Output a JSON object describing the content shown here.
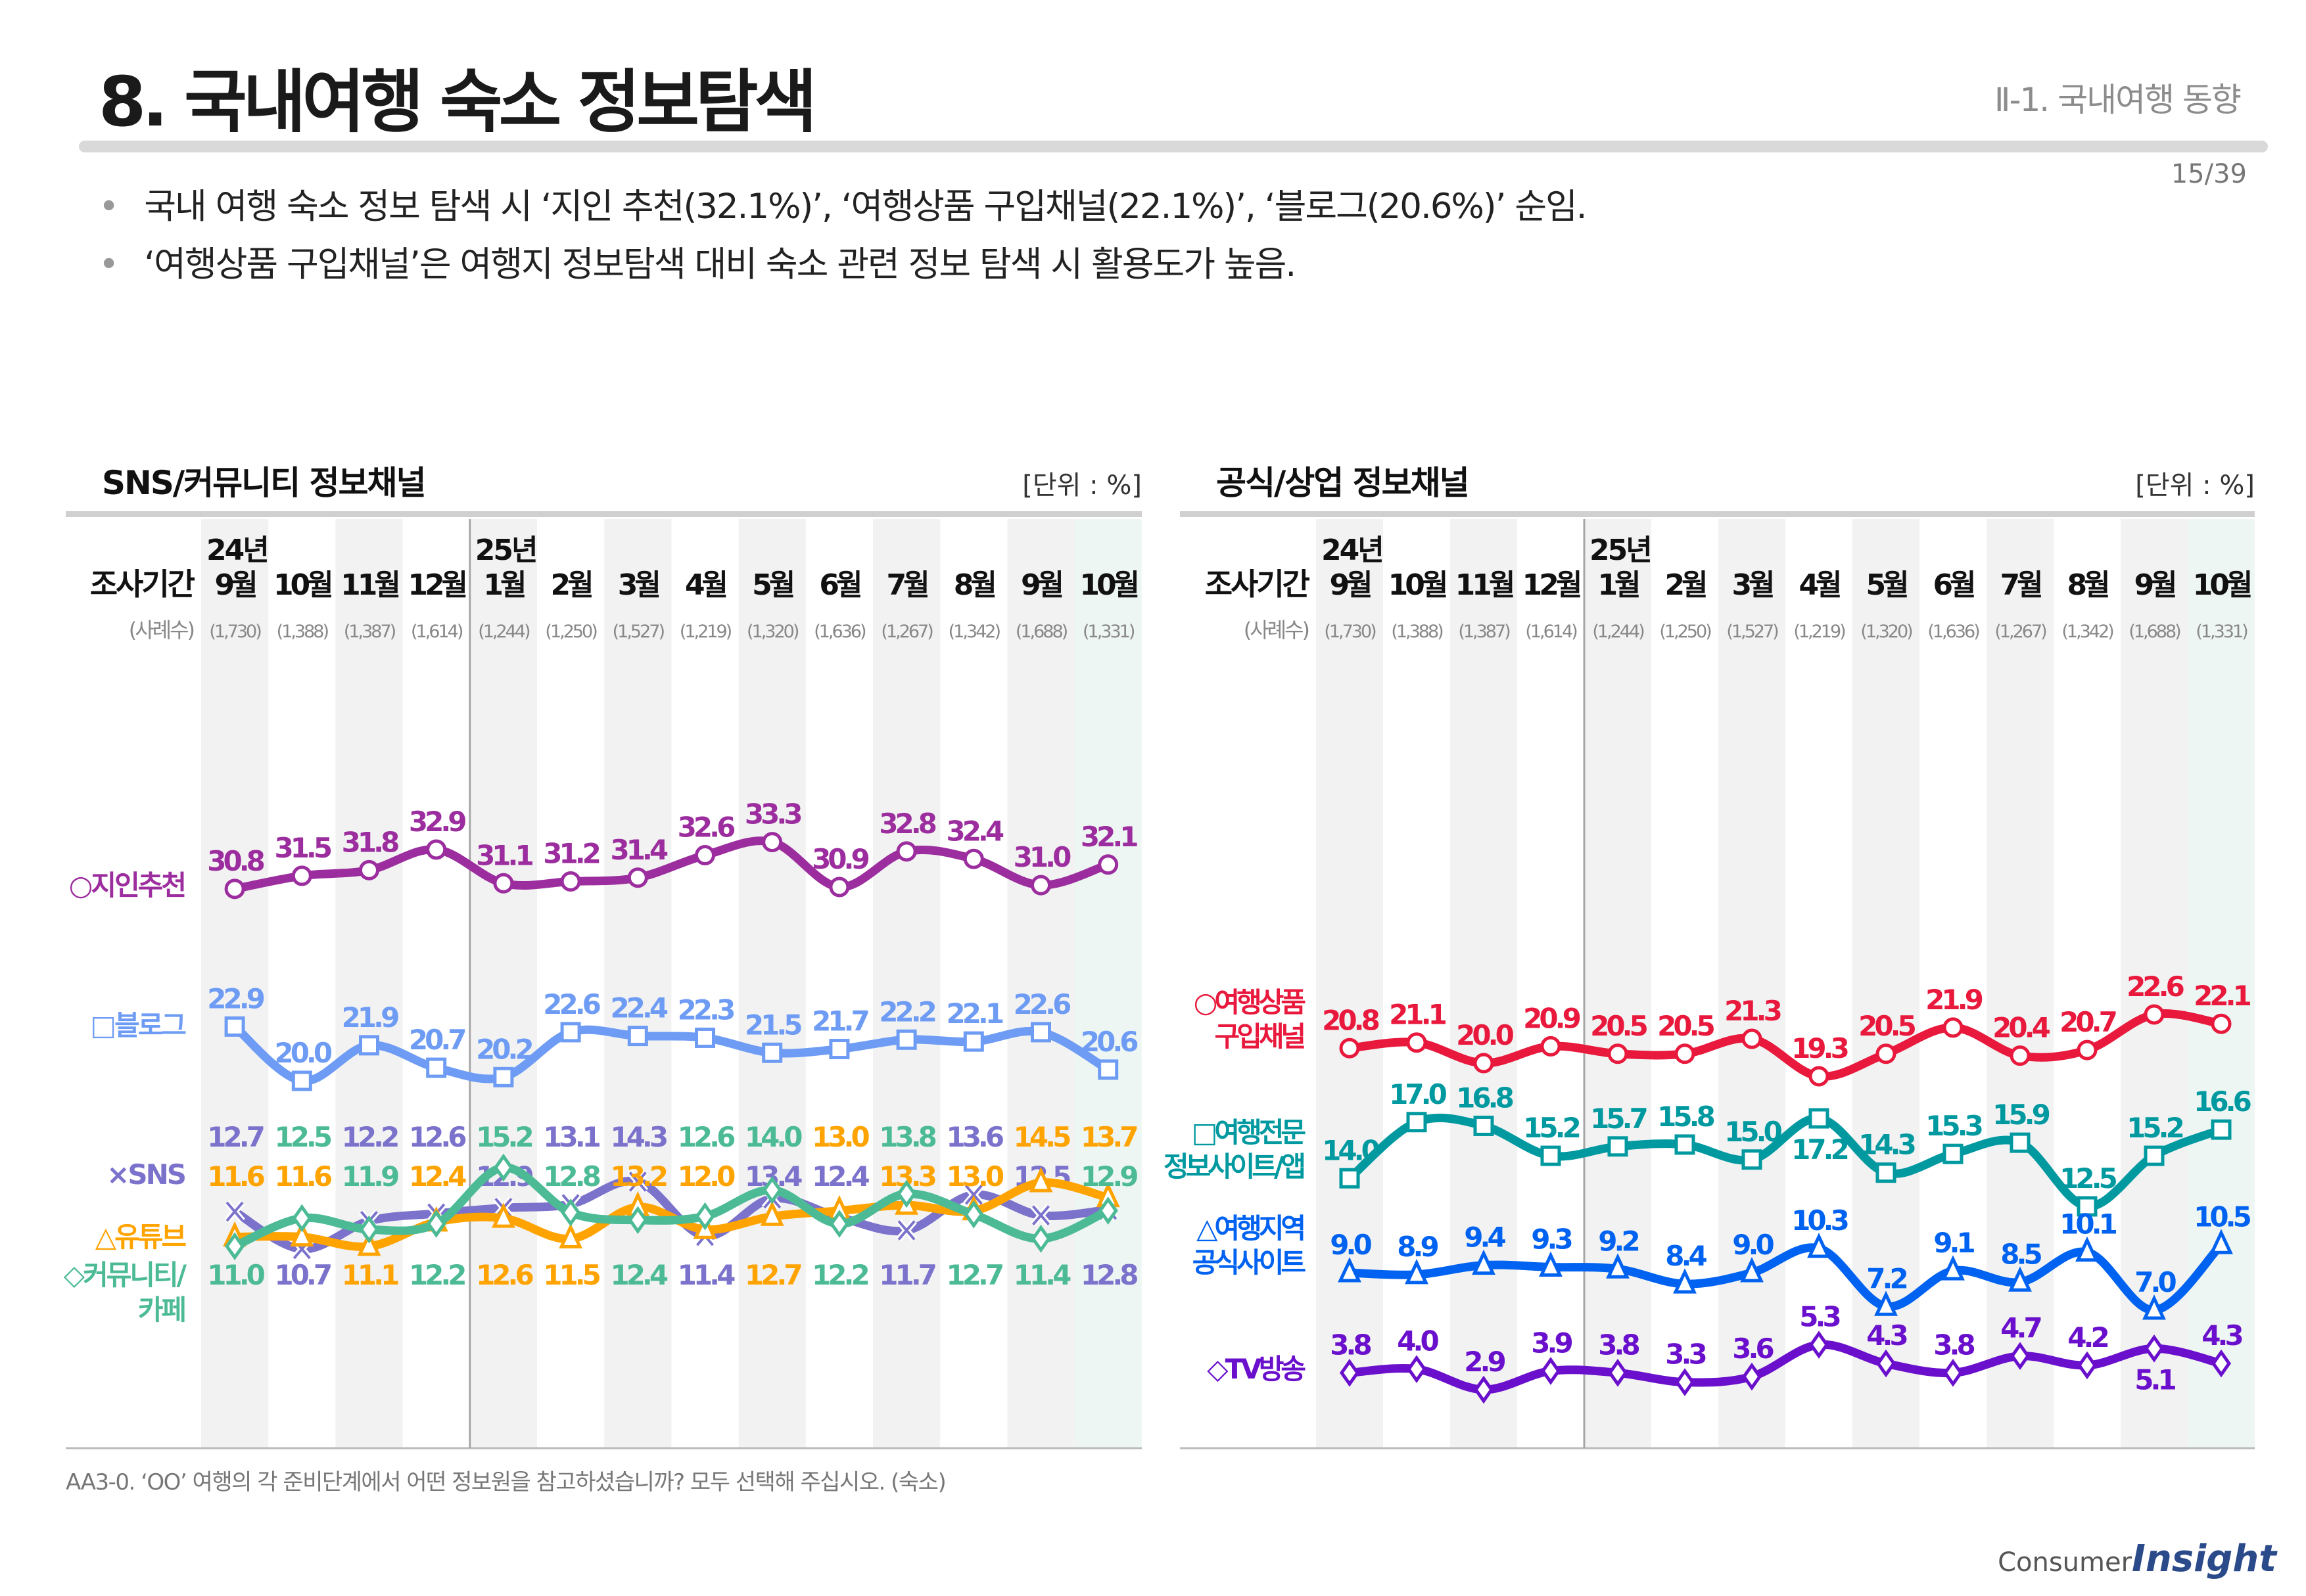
{
  "header": {
    "title": "8. 국내여행 숙소 정보탐색",
    "section": "Ⅱ-1. 국내여행 동향",
    "page": "15/39"
  },
  "bullets": [
    "국내 여행 숙소 정보 탐색 시 ‘지인 추천(32.1%)’, ‘여행상품 구입채널(22.1%)’, ‘블로그(20.6%)’ 순임.",
    "‘여행상품 구입채널’은 여행지 정보탐색 대비 숙소 관련 정보 탐색 시 활용도가 높음."
  ],
  "bullet_symbol": "•",
  "footnote": "AA3-0. ‘OO’ 여행의 각 준비단계에서 어떤 정보원을 참고하셨습니까? 모두 선택해 주십시오. (숙소)",
  "logo": {
    "part1": "Consumer",
    "part2": "Insight"
  },
  "chart_data": [
    {
      "type": "line",
      "title": "SNS/커뮤니티 정보채널",
      "unit": "[단위 : %]",
      "period_label": "조사기간",
      "sample_label": "(사례수)",
      "years": [
        {
          "label": "24년",
          "month_index": 0
        },
        {
          "label": "25년",
          "month_index": 4
        }
      ],
      "x": [
        "9월",
        "10월",
        "11월",
        "12월",
        "1월",
        "2월",
        "3월",
        "4월",
        "5월",
        "6월",
        "7월",
        "8월",
        "9월",
        "10월"
      ],
      "samples": [
        "(1,730)",
        "(1,388)",
        "(1,387)",
        "(1,614)",
        "(1,244)",
        "(1,250)",
        "(1,527)",
        "(1,219)",
        "(1,320)",
        "(1,636)",
        "(1,267)",
        "(1,342)",
        "(1,688)",
        "(1,331)"
      ],
      "series": [
        {
          "name": "○지인추천",
          "name_lines": [
            "○지인추천"
          ],
          "marker": "circle",
          "color": "#9c2d9e",
          "values": [
            30.8,
            31.5,
            31.8,
            32.9,
            31.1,
            31.2,
            31.4,
            32.6,
            33.3,
            30.9,
            32.8,
            32.4,
            31.0,
            32.1
          ]
        },
        {
          "name": "□블로그",
          "name_lines": [
            "□블로그"
          ],
          "marker": "square",
          "color": "#6e9cf4",
          "values": [
            22.9,
            20.0,
            21.9,
            20.7,
            20.2,
            22.6,
            22.4,
            22.3,
            21.5,
            21.7,
            22.2,
            22.1,
            22.6,
            20.6
          ]
        },
        {
          "name": "×SNS",
          "name_lines": [
            "×SNS"
          ],
          "marker": "x",
          "color": "#7b72cc",
          "values": [
            12.7,
            10.7,
            12.2,
            12.6,
            12.9,
            13.1,
            14.3,
            11.4,
            13.4,
            12.4,
            11.7,
            13.6,
            12.5,
            12.8
          ]
        },
        {
          "name": "△유튜브",
          "name_lines": [
            "△유튜브"
          ],
          "marker": "triangle",
          "color": "#ffa300",
          "values": [
            11.6,
            11.6,
            11.1,
            12.4,
            12.6,
            11.5,
            13.2,
            12.0,
            12.7,
            13.0,
            13.3,
            13.0,
            14.5,
            13.7
          ]
        },
        {
          "name": "◇커뮤니티/카페",
          "name_lines": [
            "◇커뮤니티/",
            "카페"
          ],
          "marker": "diamond",
          "color": "#4cbb95",
          "values": [
            11.0,
            12.5,
            11.9,
            12.2,
            15.2,
            12.8,
            12.4,
            12.6,
            14.0,
            12.2,
            13.8,
            12.7,
            11.4,
            12.9
          ]
        }
      ]
    },
    {
      "type": "line",
      "title": "공식/상업 정보채널",
      "unit": "[단위 : %]",
      "period_label": "조사기간",
      "sample_label": "(사례수)",
      "years": [
        {
          "label": "24년",
          "month_index": 0
        },
        {
          "label": "25년",
          "month_index": 4
        }
      ],
      "x": [
        "9월",
        "10월",
        "11월",
        "12월",
        "1월",
        "2월",
        "3월",
        "4월",
        "5월",
        "6월",
        "7월",
        "8월",
        "9월",
        "10월"
      ],
      "samples": [
        "(1,730)",
        "(1,388)",
        "(1,387)",
        "(1,614)",
        "(1,244)",
        "(1,250)",
        "(1,527)",
        "(1,219)",
        "(1,320)",
        "(1,636)",
        "(1,267)",
        "(1,342)",
        "(1,688)",
        "(1,331)"
      ],
      "series": [
        {
          "name": "○여행상품 구입채널",
          "name_lines": [
            "○여행상품",
            "구입채널"
          ],
          "marker": "circle",
          "color": "#e8193c",
          "values": [
            20.8,
            21.1,
            20.0,
            20.9,
            20.5,
            20.5,
            21.3,
            19.3,
            20.5,
            21.9,
            20.4,
            20.7,
            22.6,
            22.1
          ]
        },
        {
          "name": "□여행전문 정보사이트/앱",
          "name_lines": [
            "□여행전문",
            "정보사이트/앱"
          ],
          "marker": "square",
          "color": "#0099a0",
          "values": [
            14.0,
            17.0,
            16.8,
            15.2,
            15.7,
            15.8,
            15.0,
            17.2,
            14.3,
            15.3,
            15.9,
            12.5,
            15.2,
            16.6
          ]
        },
        {
          "name": "△여행지역 공식사이트",
          "name_lines": [
            "△여행지역",
            "공식사이트"
          ],
          "marker": "triangle",
          "color": "#0062f0",
          "values": [
            9.0,
            8.9,
            9.4,
            9.3,
            9.2,
            8.4,
            9.0,
            10.3,
            7.2,
            9.1,
            8.5,
            10.1,
            7.0,
            10.5
          ]
        },
        {
          "name": "◇TV방송",
          "name_lines": [
            "◇TV방송"
          ],
          "marker": "diamond",
          "color": "#6a10cc",
          "values": [
            3.8,
            4.0,
            2.9,
            3.9,
            3.8,
            3.3,
            3.6,
            5.3,
            4.3,
            3.8,
            4.7,
            4.2,
            5.1,
            4.3
          ]
        }
      ]
    }
  ]
}
